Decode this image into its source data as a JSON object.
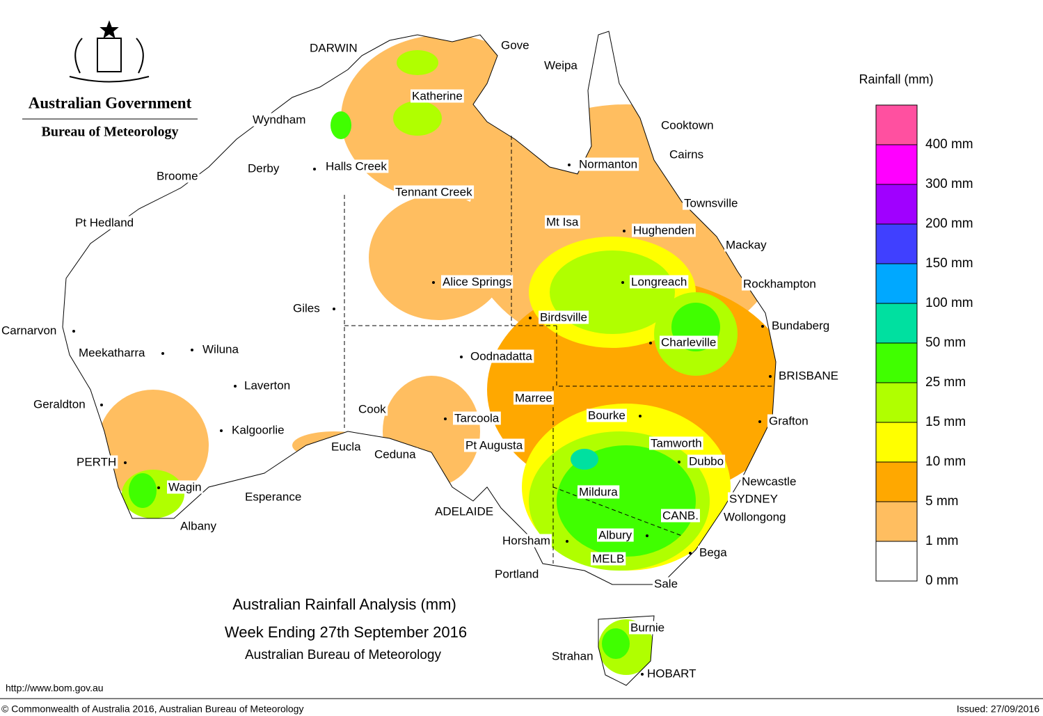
{
  "header": {
    "government": "Australian Government",
    "bureau": "Bureau of Meteorology"
  },
  "title": {
    "line1": "Australian Rainfall Analysis (mm)",
    "line2": "Week Ending 27th September 2016",
    "line3": "Australian Bureau of Meteorology"
  },
  "legend": {
    "title": "Rainfall (mm)",
    "items": [
      {
        "label": "400 mm",
        "color": "#ff50a0"
      },
      {
        "label": "300 mm",
        "color": "#ff00ff"
      },
      {
        "label": "200 mm",
        "color": "#a000ff"
      },
      {
        "label": "150 mm",
        "color": "#4040ff"
      },
      {
        "label": "100 mm",
        "color": "#00a8ff"
      },
      {
        "label": "50 mm",
        "color": "#00e0a0"
      },
      {
        "label": "25 mm",
        "color": "#40ff00"
      },
      {
        "label": "15 mm",
        "color": "#b0ff00"
      },
      {
        "label": "10 mm",
        "color": "#ffff00"
      },
      {
        "label": "5 mm",
        "color": "#ffa800"
      },
      {
        "label": "1 mm",
        "color": "#ffbe60"
      },
      {
        "label": "0 mm",
        "color": "#ffffff"
      }
    ]
  },
  "places": [
    "DARWIN",
    "Gove",
    "Weipa",
    "Katherine",
    "Wyndham",
    "Cooktown",
    "Cairns",
    "Normanton",
    "Halls Creek",
    "Derby",
    "Broome",
    "Tennant Creek",
    "Townsville",
    "Pt Hedland",
    "Mt Isa",
    "Hughenden",
    "Mackay",
    "Alice Springs",
    "Longreach",
    "Rockhampton",
    "Giles",
    "Birdsville",
    "Bundaberg",
    "Carnarvon",
    "Charleville",
    "Meekatharra",
    "Wiluna",
    "Oodnadatta",
    "BRISBANE",
    "Laverton",
    "Marree",
    "Geraldton",
    "Cook",
    "Tarcoola",
    "Bourke",
    "Grafton",
    "Kalgoorlie",
    "Tamworth",
    "Eucla",
    "Pt Augusta",
    "Ceduna",
    "Dubbo",
    "PERTH",
    "Newcastle",
    "Wagin",
    "Mildura",
    "Esperance",
    "SYDNEY",
    "ADELAIDE",
    "CANB.",
    "Wollongong",
    "Albany",
    "Albury",
    "Horsham",
    "Bega",
    "MELB",
    "Portland",
    "Sale",
    "Burnie",
    "Strahan",
    "HOBART"
  ],
  "footer": {
    "url": "http://www.bom.gov.au",
    "copyright": "© Commonwealth of Australia 2016, Australian Bureau of Meteorology",
    "issued": "Issued: 27/09/2016"
  }
}
